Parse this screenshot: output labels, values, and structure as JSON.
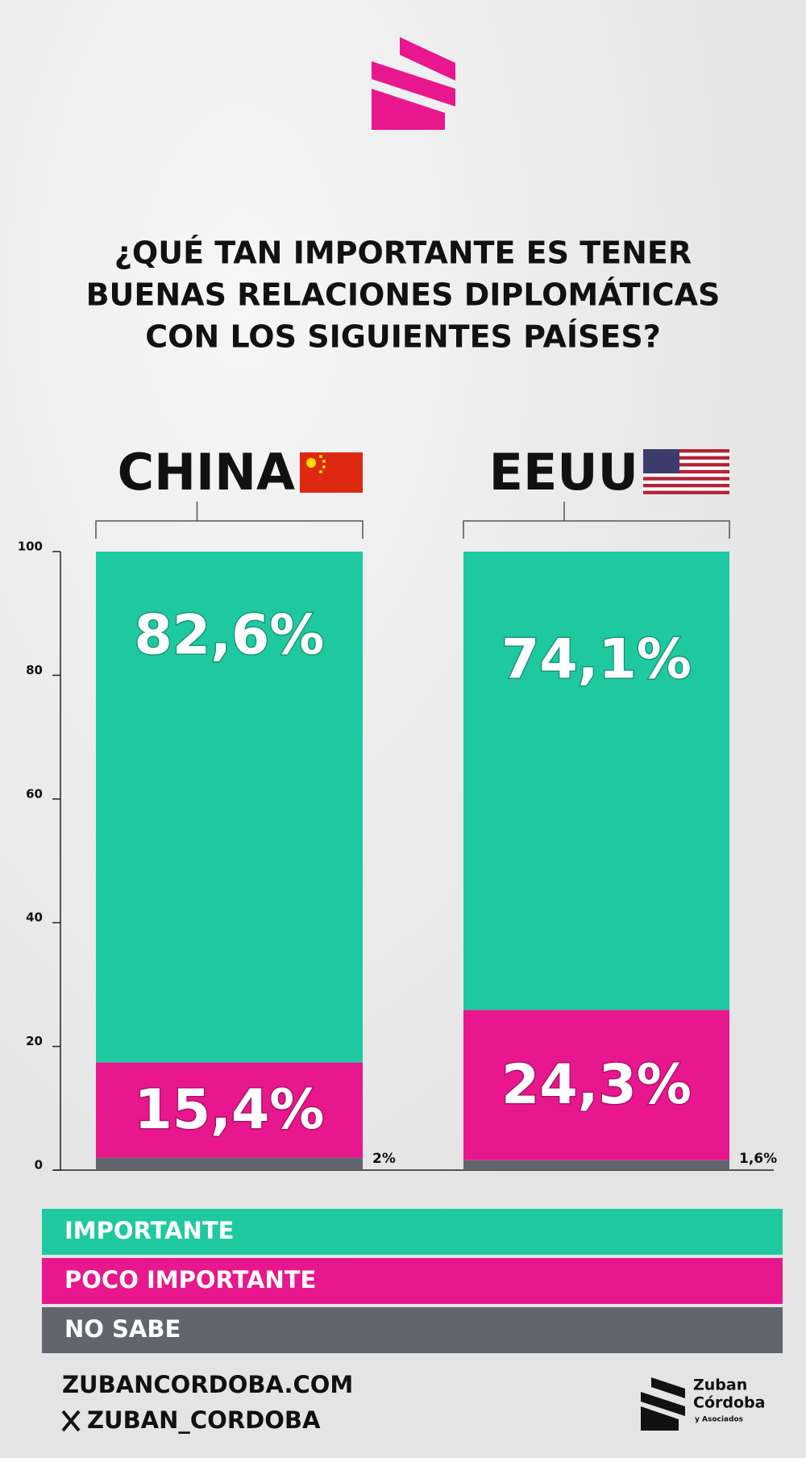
{
  "chart_data": {
    "type": "bar",
    "stacked": true,
    "title": [
      "¿QUÉ TAN IMPORTANTE ES TENER",
      "BUENAS RELACIONES DIPLOMÁTICAS",
      "CON LOS SIGUIENTES PAÍSES?"
    ],
    "categories": [
      "CHINA",
      "EEUU"
    ],
    "series": [
      {
        "name": "IMPORTANTE",
        "color": "#1fc9a0",
        "values": [
          82.6,
          74.1
        ],
        "value_labels": [
          "82,6%",
          "74,1%"
        ]
      },
      {
        "name": "POCO IMPORTANTE",
        "color": "#e8178d",
        "values": [
          15.4,
          24.3
        ],
        "value_labels": [
          "15,4%",
          "24,3%"
        ]
      },
      {
        "name": "NO SABE",
        "color": "#62656e",
        "values": [
          2,
          1.6
        ],
        "value_labels": [
          "2%",
          "1,6%"
        ]
      }
    ],
    "ylim": [
      0,
      100
    ],
    "yticks": [
      0,
      20,
      40,
      60,
      80,
      100
    ],
    "legend": "bottom"
  },
  "footer": {
    "website": "ZUBANCORDOBA.COM",
    "handle": "ZUBAN_CORDOBA"
  },
  "brand": {
    "line1": "Zuban",
    "line2": "Córdoba",
    "tagline": "y Asociados"
  }
}
